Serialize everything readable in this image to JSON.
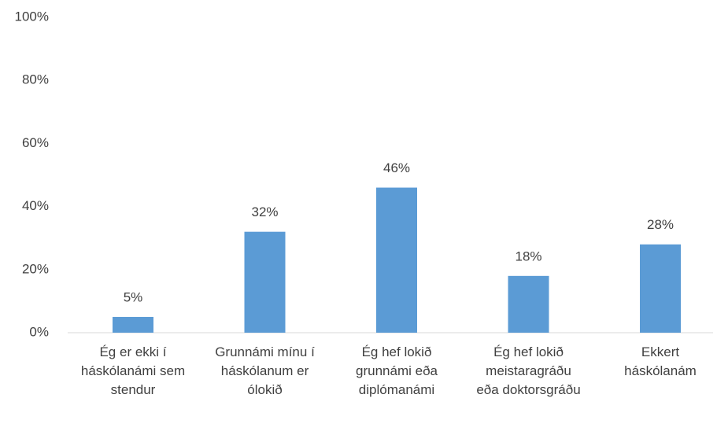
{
  "chart_data": {
    "type": "bar",
    "categories": [
      "Ég er ekki í háskólanámi sem stendur",
      "Grunnámi mínu í háskólanum er ólokið",
      "Ég hef lokið grunnámi eða diplómanámi",
      "Ég hef lokið meistaragráðu eða doktorsgráðu",
      "Ekkert háskólanám"
    ],
    "values": [
      5,
      32,
      46,
      18,
      28
    ],
    "value_labels": [
      "5%",
      "32%",
      "46%",
      "18%",
      "28%"
    ],
    "color": "#5b9bd5",
    "ylim": [
      0,
      100
    ],
    "yticks": [
      {
        "value": 0,
        "label": "0%"
      },
      {
        "value": 20,
        "label": "20%"
      },
      {
        "value": 40,
        "label": "40%"
      },
      {
        "value": 60,
        "label": "60%"
      },
      {
        "value": 80,
        "label": "80%"
      },
      {
        "value": 100,
        "label": "100%"
      }
    ],
    "grid": false
  }
}
